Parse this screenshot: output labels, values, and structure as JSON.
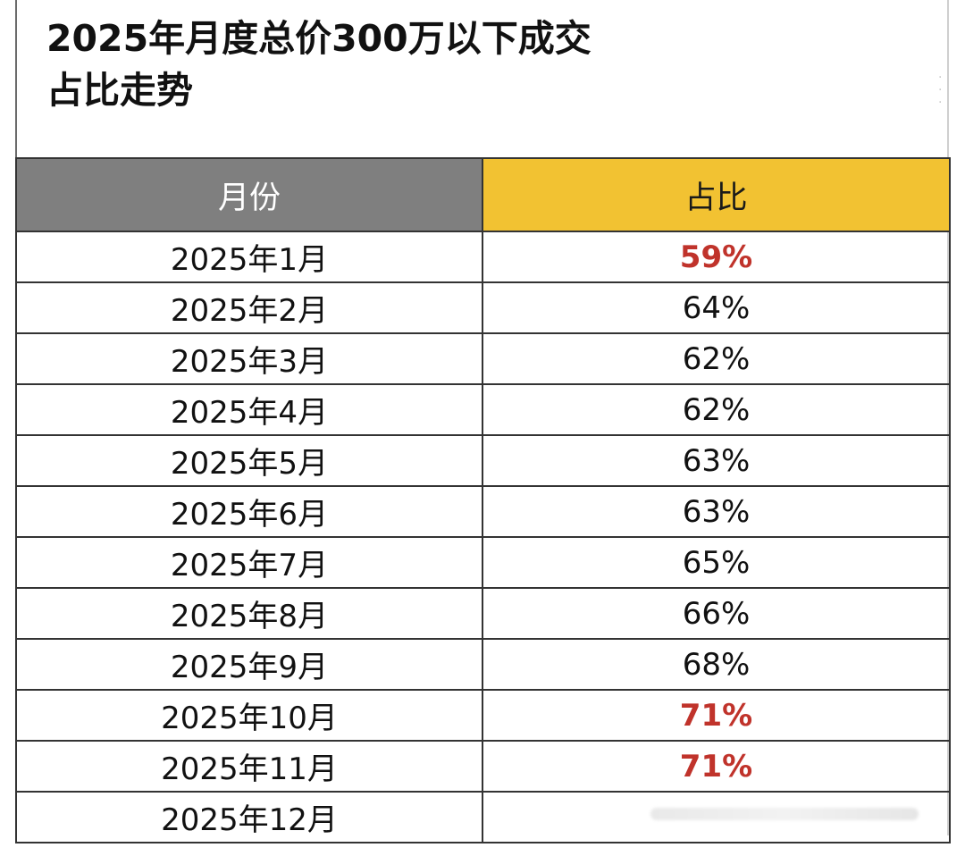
{
  "title": {
    "line1": "2025年月度总价300万以下成交",
    "line2": "占比走势"
  },
  "table": {
    "headers": [
      "月份",
      "占比"
    ],
    "header_colors": {
      "month": "#7f7f7f",
      "ratio": "#f2c232"
    },
    "highlight_color": "#c0332b",
    "rows": [
      {
        "month": "2025年1月",
        "ratio": "59%",
        "highlight": true
      },
      {
        "month": "2025年2月",
        "ratio": "64%",
        "highlight": false
      },
      {
        "month": "2025年3月",
        "ratio": "62%",
        "highlight": false
      },
      {
        "month": "2025年4月",
        "ratio": "62%",
        "highlight": false
      },
      {
        "month": "2025年5月",
        "ratio": "63%",
        "highlight": false
      },
      {
        "month": "2025年6月",
        "ratio": "63%",
        "highlight": false
      },
      {
        "month": "2025年7月",
        "ratio": "65%",
        "highlight": false
      },
      {
        "month": "2025年8月",
        "ratio": "66%",
        "highlight": false
      },
      {
        "month": "2025年9月",
        "ratio": "68%",
        "highlight": false
      },
      {
        "month": "2025年10月",
        "ratio": "71%",
        "highlight": true
      },
      {
        "month": "2025年11月",
        "ratio": "71%",
        "highlight": true
      },
      {
        "month": "2025年12月",
        "ratio": "",
        "highlight": false
      }
    ]
  }
}
